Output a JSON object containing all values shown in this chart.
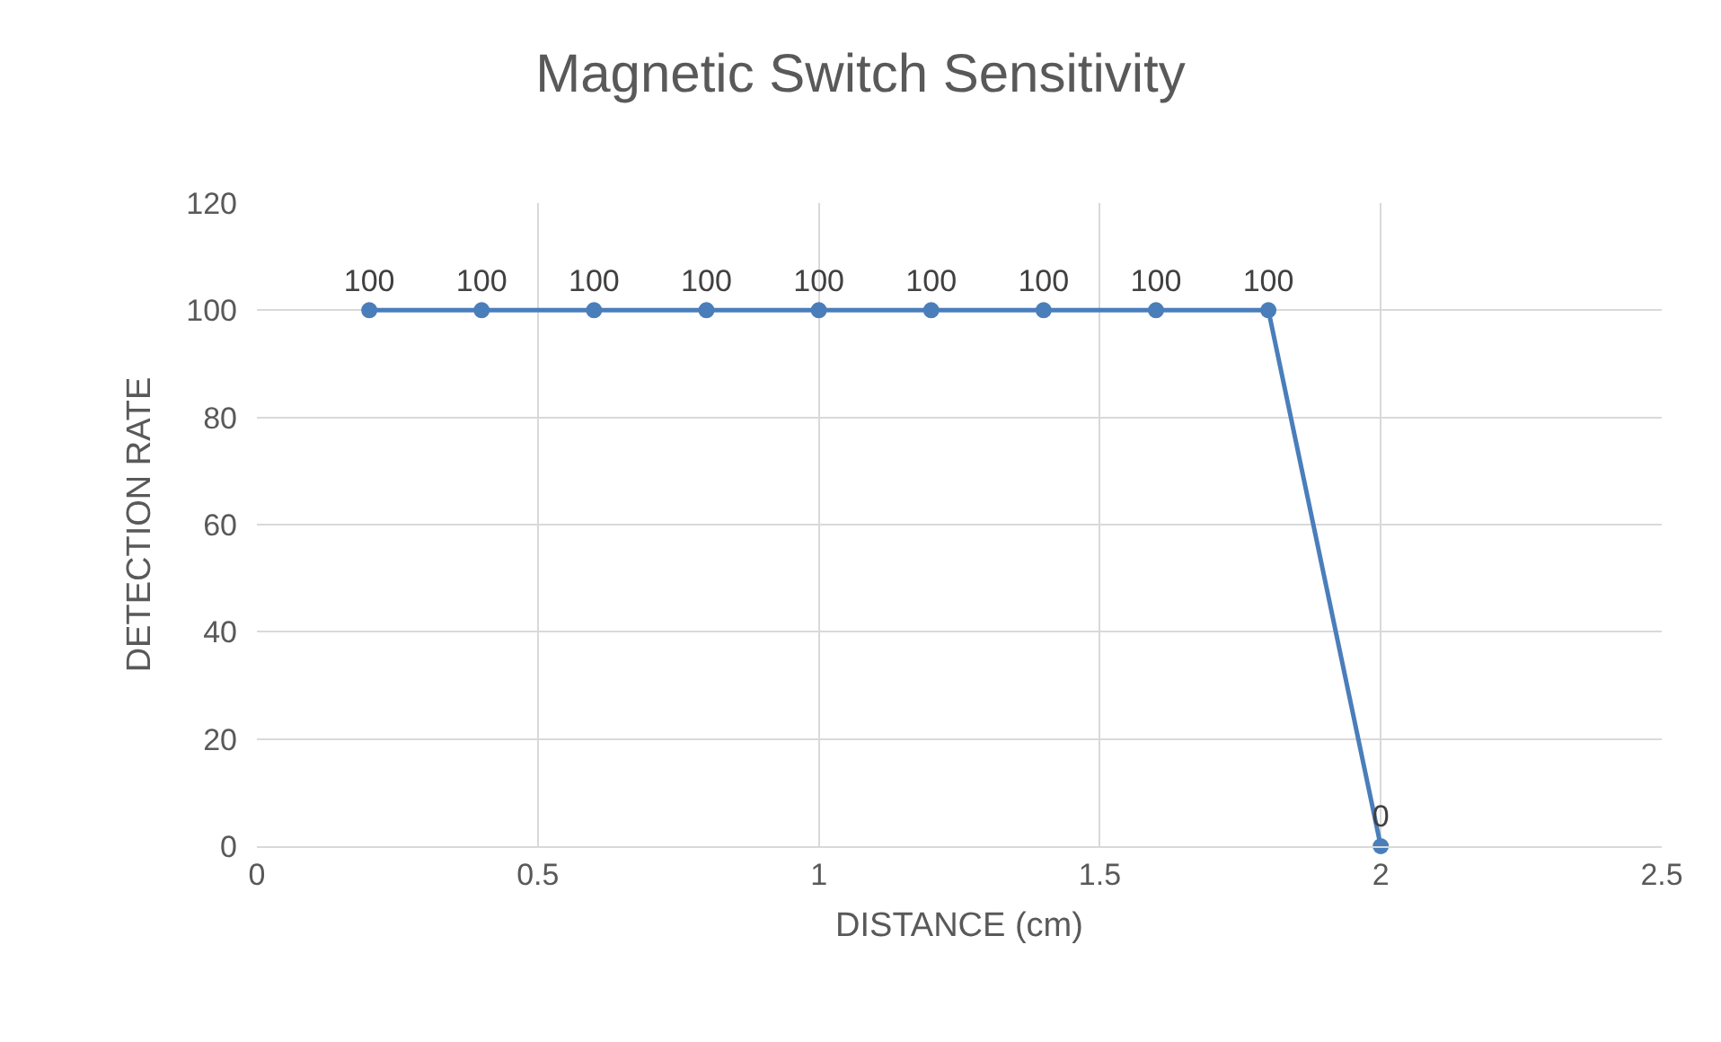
{
  "chart_data": {
    "type": "line",
    "title": "Magnetic Switch Sensitivity",
    "xlabel": "DISTANCE (cm)",
    "ylabel": "DETECTION RATE",
    "x": [
      0.2,
      0.4,
      0.6,
      0.8,
      1.0,
      1.2,
      1.4,
      1.6,
      1.8,
      2.0
    ],
    "series": [
      {
        "color": "#4a7ebb",
        "values": [
          100,
          100,
          100,
          100,
          100,
          100,
          100,
          100,
          100,
          0
        ]
      }
    ],
    "xlim": [
      0,
      2.5
    ],
    "xticks": [
      0,
      0.5,
      1,
      1.5,
      2,
      2.5
    ],
    "ylim": [
      0,
      120
    ],
    "yticks": [
      0,
      20,
      40,
      60,
      80,
      100,
      120
    ],
    "grid": true,
    "marker": "circle",
    "line_style": "solid",
    "data_labels": true,
    "legend": false
  }
}
